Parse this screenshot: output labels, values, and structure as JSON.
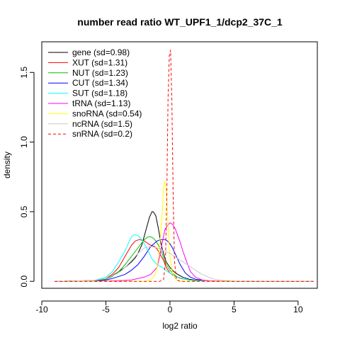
{
  "chart_data": {
    "type": "line",
    "title": "number read ratio WT_UPF1_1/dcp2_37C_1",
    "xlabel": "log2 ratio",
    "ylabel": "density",
    "xlim": [
      -10,
      11.5
    ],
    "ylim": [
      -0.05,
      1.72
    ],
    "x_ticks": [
      -10,
      -5,
      0,
      5,
      10
    ],
    "y_ticks": [
      0.0,
      0.5,
      1.0,
      1.5
    ],
    "x_tick_labels": [
      "-10",
      "-5",
      "0",
      "5",
      "10"
    ],
    "y_tick_labels": [
      "0.0",
      "0.5",
      "1.0",
      "1.5"
    ],
    "grid": false,
    "legend_position": "top-left",
    "series": [
      {
        "name": "gene (sd=0.98)",
        "color": "#000000",
        "dash": "solid",
        "x": [
          -9.0,
          -6.0,
          -5.0,
          -4.5,
          -4.0,
          -3.5,
          -3.0,
          -2.7,
          -2.5,
          -2.2,
          -1.9,
          -1.6,
          -1.4,
          -1.3,
          -1.1,
          -0.9,
          -0.7,
          -0.5,
          -0.3,
          0.0,
          0.3,
          0.6,
          1.0,
          1.5,
          2.0,
          3.0,
          4.0,
          11.2
        ],
        "y": [
          0,
          0.005,
          0.02,
          0.04,
          0.07,
          0.1,
          0.14,
          0.17,
          0.2,
          0.26,
          0.36,
          0.46,
          0.5,
          0.5,
          0.47,
          0.38,
          0.27,
          0.2,
          0.14,
          0.1,
          0.07,
          0.05,
          0.03,
          0.015,
          0.008,
          0.002,
          0,
          0
        ]
      },
      {
        "name": "XUT (sd=1.31)",
        "color": "#ff0000",
        "dash": "solid",
        "x": [
          -9.0,
          -6.0,
          -5.0,
          -4.5,
          -4.0,
          -3.5,
          -3.0,
          -2.7,
          -2.4,
          -2.0,
          -1.7,
          -1.5,
          -1.2,
          -1.0,
          -0.8,
          -0.5,
          -0.3,
          0.0,
          0.3,
          0.7,
          1.0,
          1.5,
          2.0,
          3.0,
          4.0,
          11.2
        ],
        "y": [
          0,
          0.005,
          0.02,
          0.05,
          0.1,
          0.18,
          0.26,
          0.29,
          0.3,
          0.29,
          0.27,
          0.26,
          0.25,
          0.23,
          0.2,
          0.15,
          0.1,
          0.06,
          0.04,
          0.025,
          0.018,
          0.01,
          0.005,
          0.002,
          0,
          0
        ]
      },
      {
        "name": "NUT (sd=1.23)",
        "color": "#00c000",
        "dash": "solid",
        "x": [
          -9.0,
          -6.0,
          -5.0,
          -4.5,
          -4.0,
          -3.5,
          -3.0,
          -2.5,
          -2.0,
          -1.7,
          -1.5,
          -1.3,
          -1.1,
          -0.9,
          -0.7,
          -0.5,
          -0.3,
          0.0,
          0.3,
          0.6,
          1.0,
          1.5,
          2.0,
          3.0,
          4.0,
          11.2
        ],
        "y": [
          0,
          0.005,
          0.015,
          0.035,
          0.07,
          0.12,
          0.18,
          0.24,
          0.3,
          0.32,
          0.32,
          0.31,
          0.29,
          0.26,
          0.22,
          0.17,
          0.12,
          0.08,
          0.05,
          0.03,
          0.02,
          0.01,
          0.005,
          0.002,
          0,
          0
        ]
      },
      {
        "name": "CUT (sd=1.34)",
        "color": "#0000ff",
        "dash": "solid",
        "x": [
          -9.0,
          -6.0,
          -5.0,
          -4.5,
          -4.0,
          -3.5,
          -3.0,
          -2.5,
          -2.0,
          -1.5,
          -1.0,
          -0.7,
          -0.4,
          -0.2,
          0.0,
          0.2,
          0.5,
          0.8,
          1.2,
          1.6,
          2.0,
          2.5,
          3.0,
          4.0,
          5.0,
          11.2
        ],
        "y": [
          0,
          0.002,
          0.01,
          0.02,
          0.035,
          0.05,
          0.08,
          0.12,
          0.18,
          0.25,
          0.29,
          0.3,
          0.3,
          0.29,
          0.27,
          0.24,
          0.18,
          0.12,
          0.06,
          0.03,
          0.015,
          0.008,
          0.004,
          0.001,
          0,
          0
        ]
      },
      {
        "name": "SUT (sd=1.18)",
        "color": "#00ffff",
        "dash": "solid",
        "x": [
          -9.0,
          -6.0,
          -5.0,
          -4.5,
          -4.0,
          -3.5,
          -3.2,
          -3.0,
          -2.8,
          -2.5,
          -2.2,
          -2.0,
          -1.7,
          -1.4,
          -1.0,
          -0.6,
          -0.2,
          0.2,
          0.6,
          1.0,
          1.5,
          2.0,
          3.0,
          4.0,
          11.2
        ],
        "y": [
          0,
          0.005,
          0.03,
          0.07,
          0.14,
          0.22,
          0.28,
          0.32,
          0.335,
          0.33,
          0.3,
          0.27,
          0.22,
          0.16,
          0.12,
          0.1,
          0.07,
          0.05,
          0.03,
          0.02,
          0.01,
          0.005,
          0.002,
          0,
          0
        ]
      },
      {
        "name": "tRNA (sd=1.13)",
        "color": "#ff00ff",
        "dash": "solid",
        "x": [
          -9.0,
          -6.0,
          -5.0,
          -4.0,
          -3.0,
          -2.0,
          -1.5,
          -1.0,
          -0.8,
          -0.6,
          -0.4,
          -0.2,
          0.0,
          0.2,
          0.4,
          0.6,
          0.8,
          1.0,
          1.3,
          1.6,
          2.0,
          2.5,
          3.0,
          4.0,
          11.2
        ],
        "y": [
          0,
          0,
          0.002,
          0.005,
          0.01,
          0.03,
          0.05,
          0.1,
          0.18,
          0.28,
          0.37,
          0.4,
          0.42,
          0.41,
          0.38,
          0.33,
          0.28,
          0.22,
          0.14,
          0.07,
          0.03,
          0.01,
          0.004,
          0.001,
          0
        ]
      },
      {
        "name": "snoRNA (sd=0.54)",
        "color": "#ffff00",
        "dash": "solid",
        "x": [
          -9.0,
          -2.0,
          -1.5,
          -1.2,
          -1.0,
          -0.8,
          -0.6,
          -0.5,
          -0.4,
          -0.3,
          -0.2,
          -0.1,
          0.0,
          0.2,
          0.4,
          0.6,
          1.0,
          11.2
        ],
        "y": [
          0,
          0,
          0.01,
          0.04,
          0.1,
          0.25,
          0.5,
          0.68,
          0.72,
          0.65,
          0.5,
          0.3,
          0.18,
          0.06,
          0.02,
          0.005,
          0,
          0
        ]
      },
      {
        "name": "ncRNA (sd=1.5)",
        "color": "#c8c8c8",
        "dash": "solid",
        "x": [
          -9.0,
          -6.0,
          -5.0,
          -4.0,
          -3.5,
          -3.0,
          -2.5,
          -2.0,
          -1.5,
          -1.0,
          -0.5,
          0.0,
          0.5,
          1.0,
          1.5,
          2.0,
          2.5,
          3.0,
          3.5,
          4.0,
          5.0,
          11.2
        ],
        "y": [
          0,
          0.005,
          0.02,
          0.06,
          0.1,
          0.15,
          0.2,
          0.24,
          0.25,
          0.24,
          0.22,
          0.2,
          0.17,
          0.14,
          0.11,
          0.08,
          0.05,
          0.03,
          0.015,
          0.008,
          0.002,
          0
        ]
      },
      {
        "name": "snRNA (sd=0.2)",
        "color": "#ff0000",
        "dash": "dashed",
        "x": [
          -9.0,
          -0.8,
          -0.5,
          -0.35,
          -0.25,
          -0.15,
          -0.05,
          0.05,
          0.15,
          0.25,
          0.35,
          0.5,
          0.8,
          11.2
        ],
        "y": [
          0,
          0,
          0.01,
          0.15,
          0.6,
          1.3,
          1.62,
          1.66,
          1.3,
          0.6,
          0.15,
          0.01,
          0,
          0
        ]
      }
    ]
  }
}
